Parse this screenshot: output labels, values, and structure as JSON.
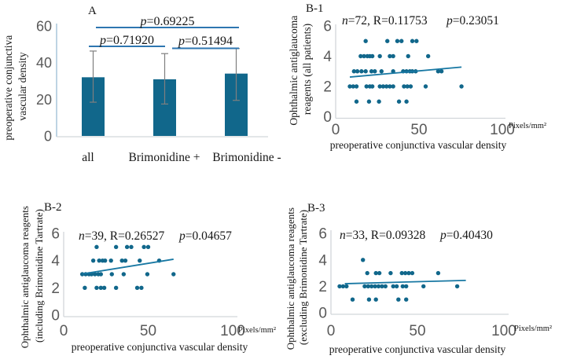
{
  "figure": {
    "background": "#ffffff",
    "point_color": "#11678B",
    "bar_color": "#11678B",
    "trend_color": "#1878A3",
    "bracket_color": "#2E76B0",
    "axis_color_bar": "#A8C6DA",
    "axis_color_scatter": "#D2D6DA",
    "tick_label_color": "#595959",
    "errorbar_color": "#7F7F7F",
    "text_color": "#161616"
  },
  "chart_data": [
    {
      "id": "A",
      "type": "bar",
      "panel_label": "A",
      "ylabel": "preoperative conjunctiva vascular density",
      "ylabel_lines": [
        "preoperative conjunctiva",
        "vascular density"
      ],
      "categories": [
        "all",
        "Brimonidine +",
        "Brimonidine -"
      ],
      "values": [
        32.0,
        30.9,
        34.0
      ],
      "error_low": [
        18.4,
        17.4,
        19.4
      ],
      "error_high": [
        46.3,
        44.9,
        47.7
      ],
      "ylim": [
        0,
        60
      ],
      "yticks": [
        0,
        20,
        40,
        60
      ],
      "legend": "none",
      "comparisons": [
        {
          "between": [
            "all",
            "Brimonidine +"
          ],
          "p_label": "p=0.71920"
        },
        {
          "between": [
            "Brimonidine +",
            "Brimonidine -"
          ],
          "p_label": "p=0.51494"
        },
        {
          "between": [
            "all",
            "Brimonidine -"
          ],
          "p_label": "p=0.69225"
        }
      ]
    },
    {
      "id": "B-1",
      "type": "scatter",
      "panel_label": "B-1",
      "stats": "n=72, R=0.11753",
      "p_label": "p=0.23051",
      "ylabel": "Ophthalmic antiglaucoma reagents (all patients)",
      "ylabel_lines": [
        "Ophthalmic antiglaucoma",
        "reagents (all patients)"
      ],
      "xlabel": "preoperative conjunctiva vascular density",
      "x_unit": "Pixels/mm²",
      "xlim": [
        0,
        100
      ],
      "xticks": [
        0,
        50,
        100
      ],
      "ylim": [
        0,
        6
      ],
      "yticks": [
        0,
        2,
        4,
        6
      ],
      "trend": {
        "x1": 8.5,
        "y1": 2.62,
        "x2": 75.5,
        "y2": 3.28
      },
      "points": [
        [
          18,
          5
        ],
        [
          31,
          5
        ],
        [
          37,
          5
        ],
        [
          39.5,
          5
        ],
        [
          46,
          5
        ],
        [
          48.5,
          5
        ],
        [
          15,
          4
        ],
        [
          17,
          4
        ],
        [
          19,
          4
        ],
        [
          20.5,
          4
        ],
        [
          22,
          4
        ],
        [
          26.5,
          4
        ],
        [
          32.5,
          4
        ],
        [
          34.5,
          4
        ],
        [
          43.5,
          4
        ],
        [
          55.5,
          4
        ],
        [
          11,
          3
        ],
        [
          13,
          3
        ],
        [
          15.5,
          3
        ],
        [
          18,
          3
        ],
        [
          21.5,
          3
        ],
        [
          23.5,
          3
        ],
        [
          27.5,
          3
        ],
        [
          34.5,
          3
        ],
        [
          40.5,
          3
        ],
        [
          42.5,
          3
        ],
        [
          44.5,
          3
        ],
        [
          46,
          3
        ],
        [
          48,
          3
        ],
        [
          61.5,
          3
        ],
        [
          63.5,
          3
        ],
        [
          8.5,
          2
        ],
        [
          10.5,
          2
        ],
        [
          12.5,
          2
        ],
        [
          18.5,
          2
        ],
        [
          20.5,
          2
        ],
        [
          22,
          2
        ],
        [
          26.5,
          2
        ],
        [
          28.5,
          2
        ],
        [
          30.5,
          2
        ],
        [
          32.5,
          2
        ],
        [
          34.5,
          2
        ],
        [
          41,
          2
        ],
        [
          43,
          2
        ],
        [
          45,
          2
        ],
        [
          54,
          2
        ],
        [
          75.5,
          2
        ],
        [
          12.5,
          1
        ],
        [
          20,
          1
        ],
        [
          26,
          1
        ],
        [
          38,
          1
        ],
        [
          42.5,
          1
        ]
      ]
    },
    {
      "id": "B-2",
      "type": "scatter",
      "panel_label": "B-2",
      "stats": "n=39, R=0.26527",
      "p_label": "p=0.04657",
      "ylabel": "Ophthalmic antiglaucoma reagents (including Brimonidine Tartrate)",
      "ylabel_lines": [
        "Ophthalmic antiglaucoma reagents",
        "(including Brimonidine Tartrate)"
      ],
      "xlabel": "preoperative conjunctiva vascular density",
      "x_unit": "Pixels/mm²",
      "xlim": [
        0,
        100
      ],
      "xticks": [
        0,
        50,
        100
      ],
      "ylim": [
        0,
        6
      ],
      "yticks": [
        0,
        2,
        4,
        6
      ],
      "trend": {
        "x1": 11,
        "y1": 3.02,
        "x2": 65,
        "y2": 4.1
      },
      "points": [
        [
          19.5,
          5
        ],
        [
          31,
          5
        ],
        [
          37.5,
          5
        ],
        [
          40,
          5
        ],
        [
          47.5,
          5
        ],
        [
          50,
          5
        ],
        [
          17.5,
          4
        ],
        [
          21,
          4
        ],
        [
          23,
          4
        ],
        [
          24.5,
          4
        ],
        [
          28,
          4
        ],
        [
          34.5,
          4
        ],
        [
          36.5,
          4
        ],
        [
          45,
          4
        ],
        [
          56.5,
          4
        ],
        [
          11,
          3
        ],
        [
          13,
          3
        ],
        [
          15,
          3
        ],
        [
          16.5,
          3
        ],
        [
          18.5,
          3
        ],
        [
          20.5,
          3
        ],
        [
          22,
          3
        ],
        [
          28.5,
          3
        ],
        [
          35.5,
          3
        ],
        [
          49.5,
          3
        ],
        [
          65,
          3
        ],
        [
          12.5,
          2
        ],
        [
          19.5,
          2
        ],
        [
          22,
          2
        ],
        [
          24,
          2
        ],
        [
          31,
          2
        ],
        [
          43.5,
          2
        ],
        [
          46,
          2
        ]
      ]
    },
    {
      "id": "B-3",
      "type": "scatter",
      "panel_label": "B-3",
      "stats": "n=33, R=0.09328",
      "p_label": "p=0.40430",
      "ylabel": "Ophthalmic antiglaucoma reagents (excluding Brimonidine Tartrate)",
      "ylabel_lines": [
        "Ophthalmic antiglaucoma reagents",
        "(excluding Brimonidine Tartrate)"
      ],
      "xlabel": "preoperative conjunctiva vascular density",
      "x_unit": "Pixels/mm²",
      "xlim": [
        0,
        100
      ],
      "xticks": [
        0,
        50,
        100
      ],
      "ylim": [
        0,
        6
      ],
      "yticks": [
        0,
        2,
        4,
        6
      ],
      "trend": {
        "x1": 8,
        "y1": 2.2,
        "x2": 78,
        "y2": 2.45
      },
      "points": [
        [
          18.5,
          4
        ],
        [
          21,
          3
        ],
        [
          26,
          3
        ],
        [
          28,
          3
        ],
        [
          34.5,
          3
        ],
        [
          41,
          3
        ],
        [
          43,
          3
        ],
        [
          45,
          3
        ],
        [
          47,
          3
        ],
        [
          62,
          3
        ],
        [
          5,
          2
        ],
        [
          7,
          2
        ],
        [
          9,
          2
        ],
        [
          19.5,
          2
        ],
        [
          21.5,
          2
        ],
        [
          23.5,
          2
        ],
        [
          25.5,
          2
        ],
        [
          27.5,
          2
        ],
        [
          29.5,
          2
        ],
        [
          31.5,
          2
        ],
        [
          36,
          2
        ],
        [
          38,
          2
        ],
        [
          41.5,
          2
        ],
        [
          43.5,
          2
        ],
        [
          53.5,
          2
        ],
        [
          73,
          2
        ],
        [
          12.5,
          1
        ],
        [
          22,
          1
        ],
        [
          26,
          1
        ],
        [
          39,
          1
        ],
        [
          43.5,
          1
        ]
      ]
    }
  ]
}
